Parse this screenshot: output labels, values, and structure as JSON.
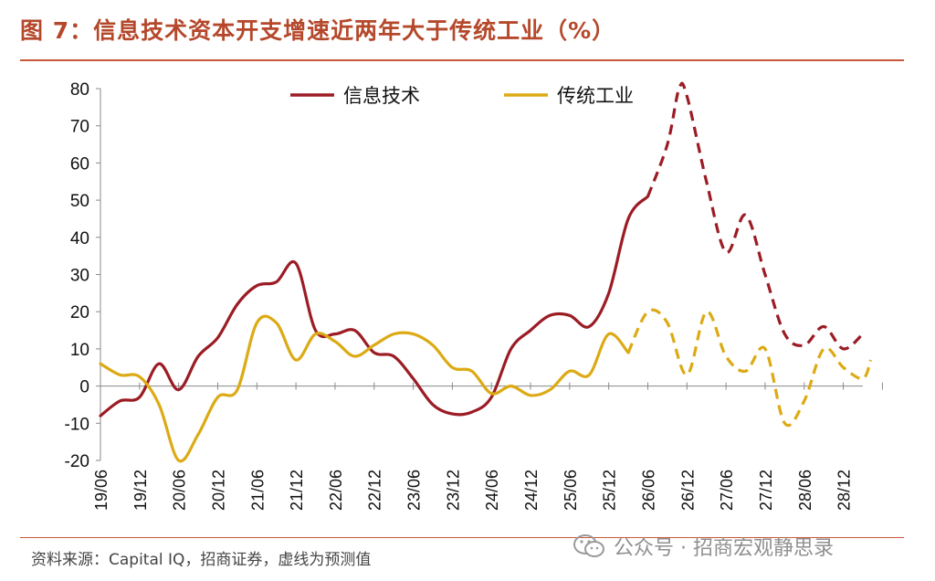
{
  "header": {
    "title": "图 7：信息技术资本开支增速近两年大于传统工业（%）"
  },
  "footer": {
    "source": "资料来源：Capital IQ，招商证券，虚线为预测值",
    "watermark": "公众号 · 招商宏观静思录"
  },
  "colors": {
    "accent": "#b5482b",
    "it": "#9b1c24",
    "industrial": "#dcaa14"
  },
  "chart_data": {
    "type": "line",
    "title": "",
    "xlabel": "",
    "ylabel": "",
    "ylim": [
      -20,
      80
    ],
    "yticks": [
      -20,
      -10,
      0,
      10,
      20,
      30,
      40,
      50,
      60,
      70,
      80
    ],
    "categories": [
      "19/06",
      "19/12",
      "20/06",
      "20/12",
      "21/06",
      "21/12",
      "22/06",
      "22/12",
      "23/06",
      "23/12",
      "24/06",
      "24/12",
      "25/06",
      "25/12",
      "26/06",
      "26/12",
      "27/06",
      "27/12",
      "28/06",
      "28/12"
    ],
    "legend": {
      "position": "top-center"
    },
    "grid": false,
    "series": [
      {
        "name": "信息技术",
        "color": "#9b1c24",
        "actual": [
          [
            2019.5,
            -8
          ],
          [
            2019.75,
            -4
          ],
          [
            2020.0,
            -3
          ],
          [
            2020.25,
            6
          ],
          [
            2020.5,
            -1
          ],
          [
            2020.75,
            8
          ],
          [
            2021.0,
            13
          ],
          [
            2021.25,
            22
          ],
          [
            2021.5,
            27
          ],
          [
            2021.75,
            28
          ],
          [
            2022.0,
            33
          ],
          [
            2022.25,
            15
          ],
          [
            2022.5,
            14
          ],
          [
            2022.75,
            15
          ],
          [
            2023.0,
            9
          ],
          [
            2023.25,
            8
          ],
          [
            2023.5,
            2
          ],
          [
            2023.75,
            -5
          ],
          [
            2024.0,
            -7.5
          ],
          [
            2024.25,
            -7
          ],
          [
            2024.5,
            -3
          ],
          [
            2024.75,
            10
          ],
          [
            2025.0,
            15
          ],
          [
            2025.25,
            19
          ],
          [
            2025.5,
            19
          ],
          [
            2025.75,
            16
          ],
          [
            2026.0,
            25
          ],
          [
            2026.25,
            45
          ],
          [
            2026.5,
            51
          ]
        ],
        "forecast": [
          [
            2026.5,
            51
          ],
          [
            2026.75,
            65
          ],
          [
            2026.9,
            80
          ],
          [
            2027.0,
            78
          ],
          [
            2027.25,
            55
          ],
          [
            2027.5,
            36
          ],
          [
            2027.75,
            46
          ],
          [
            2028.0,
            30
          ],
          [
            2028.25,
            14
          ],
          [
            2028.5,
            11
          ],
          [
            2028.75,
            16
          ],
          [
            2029.0,
            10
          ],
          [
            2029.25,
            14
          ]
        ]
      },
      {
        "name": "传统工业",
        "color": "#dcaa14",
        "actual": [
          [
            2019.5,
            6
          ],
          [
            2019.75,
            3
          ],
          [
            2020.0,
            2.5
          ],
          [
            2020.25,
            -5
          ],
          [
            2020.5,
            -20
          ],
          [
            2020.75,
            -13
          ],
          [
            2021.0,
            -3
          ],
          [
            2021.25,
            -1
          ],
          [
            2021.5,
            17
          ],
          [
            2021.75,
            17
          ],
          [
            2022.0,
            7
          ],
          [
            2022.25,
            14
          ],
          [
            2022.5,
            12
          ],
          [
            2022.75,
            8
          ],
          [
            2023.0,
            11
          ],
          [
            2023.25,
            14
          ],
          [
            2023.5,
            14
          ],
          [
            2023.75,
            11
          ],
          [
            2024.0,
            5
          ],
          [
            2024.25,
            4
          ],
          [
            2024.5,
            -2
          ],
          [
            2024.75,
            0
          ],
          [
            2025.0,
            -2.5
          ],
          [
            2025.25,
            -1
          ],
          [
            2025.5,
            4
          ],
          [
            2025.75,
            3
          ],
          [
            2026.0,
            14
          ],
          [
            2026.25,
            9
          ]
        ],
        "forecast": [
          [
            2026.25,
            9
          ],
          [
            2026.5,
            20
          ],
          [
            2026.75,
            17
          ],
          [
            2027.0,
            3
          ],
          [
            2027.25,
            20
          ],
          [
            2027.5,
            8
          ],
          [
            2027.75,
            4
          ],
          [
            2028.0,
            10
          ],
          [
            2028.25,
            -10
          ],
          [
            2028.5,
            -4
          ],
          [
            2028.75,
            10
          ],
          [
            2029.0,
            5
          ],
          [
            2029.25,
            2
          ],
          [
            2029.35,
            7
          ]
        ]
      }
    ]
  }
}
